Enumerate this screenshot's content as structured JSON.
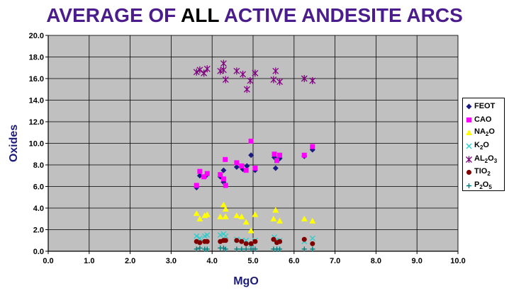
{
  "title_parts": [
    {
      "text": "AVERAGE OF ",
      "color": "#4b1d8c"
    },
    {
      "text": "ALL",
      "color": "#000000"
    },
    {
      "text": " ACTIVE ANDESITE ARCS",
      "color": "#4b1d8c"
    }
  ],
  "chart_data": {
    "type": "scatter",
    "title": "AVERAGE OF ALL ACTIVE ANDESITE ARCS",
    "xlabel": "MgO",
    "ylabel": "Oxides",
    "xlim": [
      0,
      10
    ],
    "ylim": [
      0,
      20
    ],
    "x_ticks": [
      "0.0",
      "1.0",
      "2.0",
      "3.0",
      "4.0",
      "5.0",
      "6.0",
      "7.0",
      "8.0",
      "9.0",
      "10.0"
    ],
    "y_ticks": [
      "0.0",
      "2.0",
      "4.0",
      "6.0",
      "8.0",
      "10.0",
      "12.0",
      "14.0",
      "16.0",
      "18.0",
      "20.0"
    ],
    "grid": true,
    "legend_position": "right",
    "plot_background": "#c0c0c0",
    "series": [
      {
        "name": "FEOT",
        "legend_base": "FEOT",
        "legend_sub": "",
        "legend_tail": "",
        "marker": "diamond",
        "color": "#1a1a80",
        "points": [
          [
            3.62,
            5.9
          ],
          [
            3.7,
            7.0
          ],
          [
            3.85,
            7.0
          ],
          [
            4.2,
            6.9
          ],
          [
            4.28,
            6.4
          ],
          [
            4.28,
            7.5
          ],
          [
            4.6,
            7.8
          ],
          [
            4.75,
            7.6
          ],
          [
            4.85,
            7.9
          ],
          [
            4.95,
            8.9
          ],
          [
            5.05,
            7.5
          ],
          [
            5.52,
            8.7
          ],
          [
            5.55,
            7.7
          ],
          [
            5.65,
            8.6
          ],
          [
            6.25,
            8.8
          ],
          [
            6.45,
            9.4
          ]
        ]
      },
      {
        "name": "CAO",
        "legend_base": "CAO",
        "legend_sub": "",
        "legend_tail": "",
        "marker": "square",
        "color": "#ff00ff",
        "points": [
          [
            3.62,
            6.1
          ],
          [
            3.7,
            7.4
          ],
          [
            3.8,
            6.9
          ],
          [
            3.88,
            7.2
          ],
          [
            4.2,
            7.1
          ],
          [
            4.28,
            6.7
          ],
          [
            4.32,
            8.5
          ],
          [
            4.33,
            6.1
          ],
          [
            4.6,
            8.2
          ],
          [
            4.72,
            7.9
          ],
          [
            4.83,
            7.5
          ],
          [
            4.95,
            10.2
          ],
          [
            5.05,
            7.7
          ],
          [
            5.52,
            9.0
          ],
          [
            5.58,
            8.4
          ],
          [
            5.65,
            8.9
          ],
          [
            6.25,
            8.9
          ],
          [
            6.45,
            9.7
          ]
        ]
      },
      {
        "name": "NA2O",
        "legend_base": "NA",
        "legend_sub": "2",
        "legend_tail": "O",
        "marker": "triangle",
        "color": "#ffff00",
        "points": [
          [
            3.62,
            3.5
          ],
          [
            3.7,
            3.0
          ],
          [
            3.82,
            3.3
          ],
          [
            3.88,
            3.4
          ],
          [
            4.2,
            3.2
          ],
          [
            4.28,
            4.3
          ],
          [
            4.33,
            3.9
          ],
          [
            4.33,
            3.2
          ],
          [
            4.6,
            3.3
          ],
          [
            4.72,
            3.2
          ],
          [
            4.83,
            2.7
          ],
          [
            4.95,
            1.9
          ],
          [
            5.05,
            3.4
          ],
          [
            5.5,
            3.0
          ],
          [
            5.55,
            3.8
          ],
          [
            5.65,
            2.8
          ],
          [
            6.25,
            3.0
          ],
          [
            6.45,
            2.8
          ]
        ]
      },
      {
        "name": "K2O",
        "legend_base": "K",
        "legend_sub": "2",
        "legend_tail": "O",
        "marker": "x",
        "color": "#33cccc",
        "points": [
          [
            3.62,
            1.4
          ],
          [
            3.7,
            1.2
          ],
          [
            3.82,
            1.4
          ],
          [
            3.88,
            1.5
          ],
          [
            4.2,
            1.5
          ],
          [
            4.28,
            1.6
          ],
          [
            4.33,
            1.4
          ],
          [
            4.6,
            1.1
          ],
          [
            4.72,
            1.0
          ],
          [
            4.83,
            1.0
          ],
          [
            4.95,
            0.6
          ],
          [
            5.05,
            1.0
          ],
          [
            5.52,
            1.3
          ],
          [
            5.58,
            1.0
          ],
          [
            5.65,
            1.0
          ],
          [
            6.25,
            0.9
          ],
          [
            6.45,
            1.2
          ]
        ]
      },
      {
        "name": "AL2O3",
        "legend_base": "AL",
        "legend_sub": "2",
        "legend_tail": "O",
        "legend_sub2": "3",
        "marker": "star",
        "color": "#800080",
        "points": [
          [
            3.62,
            16.6
          ],
          [
            3.7,
            16.8
          ],
          [
            3.8,
            16.5
          ],
          [
            3.88,
            16.9
          ],
          [
            4.2,
            16.7
          ],
          [
            4.28,
            17.4
          ],
          [
            4.28,
            16.8
          ],
          [
            4.33,
            15.9
          ],
          [
            4.6,
            16.7
          ],
          [
            4.75,
            16.4
          ],
          [
            4.85,
            15.0
          ],
          [
            4.93,
            15.8
          ],
          [
            5.05,
            16.5
          ],
          [
            5.5,
            15.9
          ],
          [
            5.55,
            16.7
          ],
          [
            5.65,
            15.7
          ],
          [
            6.25,
            16.0
          ],
          [
            6.45,
            15.8
          ]
        ]
      },
      {
        "name": "TIO2",
        "legend_base": "TIO",
        "legend_sub": "2",
        "legend_tail": "",
        "marker": "circle",
        "color": "#800000",
        "points": [
          [
            3.62,
            0.9
          ],
          [
            3.7,
            0.8
          ],
          [
            3.82,
            0.9
          ],
          [
            3.88,
            0.9
          ],
          [
            4.2,
            0.9
          ],
          [
            4.28,
            1.0
          ],
          [
            4.33,
            1.0
          ],
          [
            4.6,
            1.0
          ],
          [
            4.72,
            0.9
          ],
          [
            4.83,
            0.7
          ],
          [
            4.95,
            0.7
          ],
          [
            5.05,
            0.9
          ],
          [
            5.5,
            1.1
          ],
          [
            5.58,
            0.8
          ],
          [
            5.65,
            0.9
          ],
          [
            6.25,
            1.1
          ],
          [
            6.45,
            0.7
          ]
        ]
      },
      {
        "name": "P2O5",
        "legend_base": "P",
        "legend_sub": "2",
        "legend_tail": "O",
        "legend_sub2": "5",
        "marker": "plus",
        "color": "#008080",
        "points": [
          [
            3.62,
            0.2
          ],
          [
            3.7,
            0.3
          ],
          [
            3.82,
            0.2
          ],
          [
            3.88,
            0.2
          ],
          [
            4.2,
            0.3
          ],
          [
            4.28,
            0.3
          ],
          [
            4.33,
            0.2
          ],
          [
            4.6,
            0.2
          ],
          [
            4.72,
            0.2
          ],
          [
            4.83,
            0.2
          ],
          [
            4.95,
            0.2
          ],
          [
            5.05,
            0.2
          ],
          [
            5.5,
            0.2
          ],
          [
            5.58,
            0.2
          ],
          [
            5.65,
            0.2
          ],
          [
            6.25,
            0.2
          ],
          [
            6.45,
            0.2
          ]
        ]
      }
    ]
  }
}
